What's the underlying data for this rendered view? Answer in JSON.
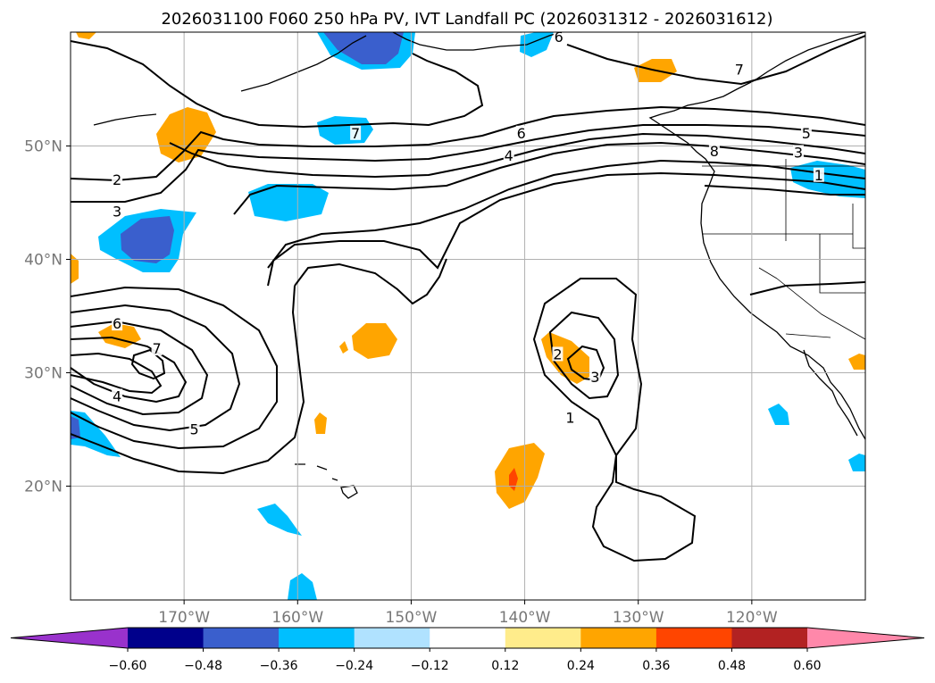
{
  "title": "2026031100 F060 250 hPa PV, IVT Landfall PC (2026031312 - 2026031612)",
  "lon_ticks": [
    {
      "lon": -170,
      "label": "170°W"
    },
    {
      "lon": -160,
      "label": "160°W"
    },
    {
      "lon": -150,
      "label": "150°W"
    },
    {
      "lon": -140,
      "label": "140°W"
    },
    {
      "lon": -130,
      "label": "130°W"
    },
    {
      "lon": -120,
      "label": "120°W"
    }
  ],
  "lat_ticks": [
    {
      "lat": 50,
      "label": "50°N"
    },
    {
      "lat": 40,
      "label": "40°N"
    },
    {
      "lat": 30,
      "label": "30°N"
    },
    {
      "lat": 20,
      "label": "20°N"
    }
  ],
  "colorbar": {
    "colors": [
      "#9932cc",
      "#00008b",
      "#3a5fcd",
      "#00bfff",
      "#b0e2ff",
      "#ffffff",
      "#ffec8b",
      "#ffa500",
      "#ff4500",
      "#b22222",
      "#ff88aa"
    ],
    "labels": [
      "−0.60",
      "−0.48",
      "−0.36",
      "−0.24",
      "−0.12",
      "0.12",
      "0.24",
      "0.36",
      "0.48",
      "0.60"
    ]
  },
  "contour_labels": [
    {
      "text": "6",
      "lon": -137.0,
      "lat": 59.5
    },
    {
      "text": "7",
      "lon": -121.1,
      "lat": 56.6
    },
    {
      "text": "7",
      "lon": -154.9,
      "lat": 51.0
    },
    {
      "text": "6",
      "lon": -140.3,
      "lat": 51.0
    },
    {
      "text": "4",
      "lon": -141.4,
      "lat": 49.0
    },
    {
      "text": "5",
      "lon": -115.2,
      "lat": 51.0
    },
    {
      "text": "3",
      "lon": -115.9,
      "lat": 49.3
    },
    {
      "text": "8",
      "lon": -123.3,
      "lat": 49.4
    },
    {
      "text": "1",
      "lon": -114.1,
      "lat": 47.3
    },
    {
      "text": "2",
      "lon": -175.9,
      "lat": 46.9
    },
    {
      "text": "3",
      "lon": -175.9,
      "lat": 44.1
    },
    {
      "text": "6",
      "lon": -175.9,
      "lat": 34.2
    },
    {
      "text": "7",
      "lon": -172.4,
      "lat": 32.0
    },
    {
      "text": "4",
      "lon": -175.9,
      "lat": 27.8
    },
    {
      "text": "5",
      "lon": -169.1,
      "lat": 24.9
    },
    {
      "text": "2",
      "lon": -137.1,
      "lat": 31.5
    },
    {
      "text": "3",
      "lon": -133.8,
      "lat": 29.5
    },
    {
      "text": "1",
      "lon": -136.0,
      "lat": 25.9
    }
  ]
}
